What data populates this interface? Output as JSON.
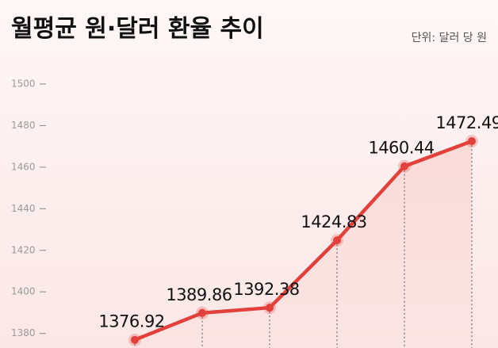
{
  "chart_data": {
    "type": "line",
    "title": "월평균 원·달러 환율 추이",
    "subtitle": "단위: 달러 당 원",
    "categories": [
      null,
      null,
      null,
      null,
      null,
      null
    ],
    "series": [
      {
        "name": null,
        "color": "#e2403a",
        "values": [
          1376.92,
          1389.86,
          1392.38,
          1424.83,
          1460.44,
          1472.49
        ]
      }
    ],
    "ylim": [
      1373,
      1500
    ],
    "yticks": [
      1380,
      1400,
      1420,
      1440,
      1460,
      1480,
      1500
    ],
    "grid": false
  }
}
